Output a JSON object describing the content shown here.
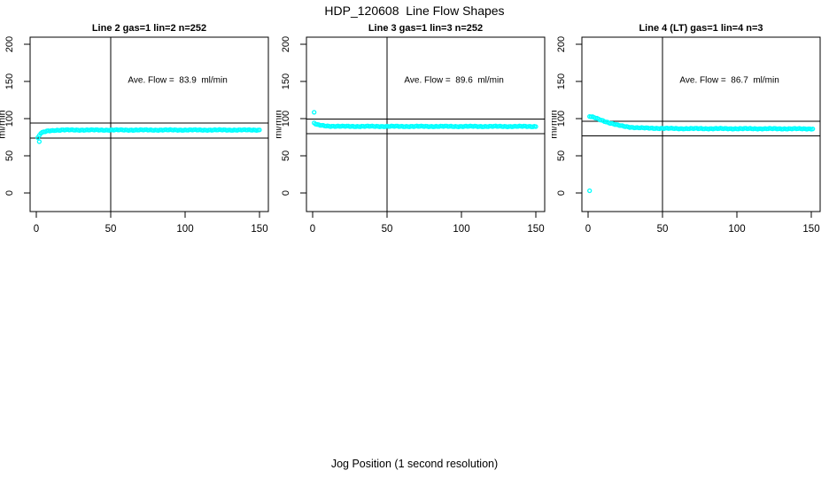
{
  "chart_data": {
    "type": "scatter",
    "title": "HDP_120608  Line Flow Shapes",
    "xlabel": "Jog Position (1 second resolution)",
    "ylabel": "ml/min",
    "xticks": [
      0,
      50,
      100,
      150
    ],
    "yticks": [
      0,
      50,
      100,
      150,
      200
    ],
    "xlim": [
      -4,
      156
    ],
    "ylim": [
      -25,
      209
    ],
    "grid": false,
    "legend": "none",
    "marker": {
      "shape": "open-circle",
      "color": "#00FFFF"
    },
    "reference_vline_x": 50,
    "panels": [
      {
        "title": "Line 2 gas=1 lin=2 n=252",
        "annotation": "Ave. Flow =  83.9  ml/min",
        "ave_flow_ml_min": 83.9,
        "n": 252,
        "ref_lines_y": [
          93.9,
          73.9
        ],
        "x_range": [
          1,
          150
        ],
        "curve_keypoints": [
          [
            1,
            74
          ],
          [
            2,
            77.5
          ],
          [
            3,
            80
          ],
          [
            5,
            82
          ],
          [
            8,
            83.5
          ],
          [
            12,
            84.3
          ],
          [
            18,
            84.7
          ],
          [
            150,
            84.7
          ]
        ],
        "outliers": [
          [
            2,
            69
          ]
        ]
      },
      {
        "title": "Line 3 gas=1 lin=3 n=252",
        "annotation": "Ave. Flow =  89.6  ml/min",
        "ave_flow_ml_min": 89.6,
        "n": 252,
        "ref_lines_y": [
          99.6,
          79.6
        ],
        "x_range": [
          1,
          150
        ],
        "curve_keypoints": [
          [
            1,
            94
          ],
          [
            2,
            92.8
          ],
          [
            3,
            91.8
          ],
          [
            5,
            91
          ],
          [
            8,
            90.3
          ],
          [
            12,
            89.9
          ],
          [
            20,
            89.6
          ],
          [
            150,
            89.5
          ]
        ],
        "outliers": [
          [
            1,
            108.5
          ]
        ]
      },
      {
        "title": "Line 4 (LT) gas=1 lin=4 n=3",
        "annotation": "Ave. Flow =  86.7  ml/min",
        "ave_flow_ml_min": 86.7,
        "n": 3,
        "ref_lines_y": [
          96.7,
          76.7
        ],
        "x_range": [
          1,
          151
        ],
        "curve_keypoints": [
          [
            1,
            103
          ],
          [
            2,
            102.5
          ],
          [
            4,
            101.5
          ],
          [
            6,
            100
          ],
          [
            8,
            98.5
          ],
          [
            11,
            96.5
          ],
          [
            14,
            94.5
          ],
          [
            17,
            92.8
          ],
          [
            20,
            91.2
          ],
          [
            24,
            89.7
          ],
          [
            28,
            88.6
          ],
          [
            33,
            87.8
          ],
          [
            40,
            87.2
          ],
          [
            60,
            86.6
          ],
          [
            151,
            86.3
          ]
        ],
        "outliers": [
          [
            1,
            3
          ]
        ]
      }
    ]
  }
}
